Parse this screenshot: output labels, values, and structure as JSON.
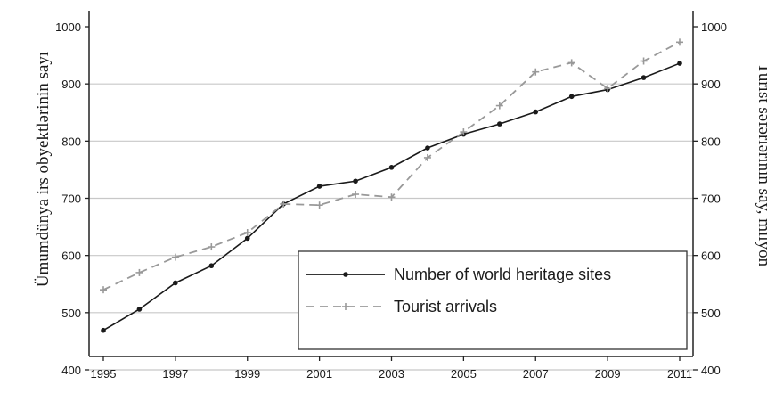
{
  "chart_data": {
    "type": "line",
    "x": [
      1995,
      1996,
      1997,
      1998,
      1999,
      2000,
      2001,
      2002,
      2003,
      2004,
      2005,
      2006,
      2007,
      2008,
      2009,
      2010,
      2011
    ],
    "x_ticks": [
      "1995",
      "1997",
      "1999",
      "2001",
      "2003",
      "2005",
      "2007",
      "2009",
      "2011"
    ],
    "xlim": [
      1995,
      2011
    ],
    "ylim": [
      400,
      1000
    ],
    "y_ticks": [
      400,
      500,
      600,
      700,
      800,
      900,
      1000
    ],
    "y_tick_labels": [
      "400",
      "500",
      "600",
      "700",
      "800",
      "900",
      "1000"
    ],
    "ylabel": "Ümumdünya irs obyektlərinin sayı",
    "y2label": "Turist səfərlərinin say, milyon",
    "y2_ticks": [
      400,
      500,
      600,
      700,
      800,
      900,
      1000
    ],
    "y2_tick_labels": [
      "400",
      "500",
      "600",
      "700",
      "800",
      "900",
      "1000"
    ],
    "grid": "horizontal",
    "legend_position": "bottom-right",
    "series": [
      {
        "name": "Number of world heritage sites",
        "style": "solid",
        "color": "#1a1a1a",
        "values": [
          469,
          506,
          552,
          582,
          630,
          690,
          721,
          730,
          754,
          788,
          812,
          830,
          851,
          878,
          890,
          911,
          936
        ]
      },
      {
        "name": "Tourist arrivals",
        "style": "dashed",
        "color": "#999999",
        "values": [
          540,
          570,
          597,
          615,
          640,
          690,
          688,
          707,
          702,
          771,
          816,
          862,
          921,
          937,
          892,
          940,
          973
        ]
      }
    ]
  }
}
